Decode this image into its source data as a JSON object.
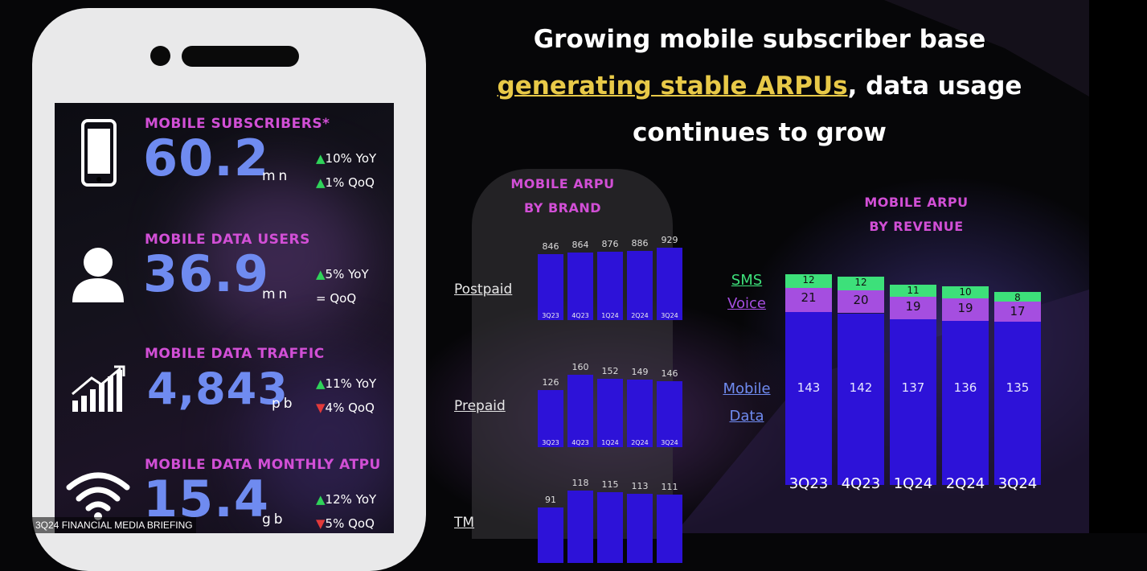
{
  "caption": "3Q24 FINANCIAL MEDIA BRIEFING",
  "headline": {
    "line1": "Growing mobile subscriber base",
    "line2_highlight": "generating stable ARPUs",
    "line2_rest": ", data usage",
    "line3": "continues to grow"
  },
  "kpis": [
    {
      "label": "MOBILE SUBSCRIBERS*",
      "value": "60.2",
      "unit": "mn",
      "icon": "phone-icon",
      "changes": [
        {
          "dir": "up",
          "text": "10% YoY"
        },
        {
          "dir": "up",
          "text": "1% QoQ"
        }
      ]
    },
    {
      "label": "MOBILE DATA USERS",
      "value": "36.9",
      "unit": "mn",
      "icon": "user-icon",
      "changes": [
        {
          "dir": "up",
          "text": "5% YoY"
        },
        {
          "dir": "eq",
          "text": "= QoQ"
        }
      ]
    },
    {
      "label": "MOBILE DATA TRAFFIC",
      "value": "4,843",
      "unit": "pb",
      "icon": "growth-chart-icon",
      "changes": [
        {
          "dir": "up",
          "text": "11% YoY"
        },
        {
          "dir": "down",
          "text": "4% QoQ"
        }
      ]
    },
    {
      "label": "MOBILE DATA MONTHLY ATPU",
      "value": "15.4",
      "unit": "gb",
      "icon": "wifi-icon",
      "changes": [
        {
          "dir": "up",
          "text": "12% YoY"
        },
        {
          "dir": "down",
          "text": "5% QoQ"
        }
      ]
    }
  ],
  "chart_data": [
    {
      "type": "bar",
      "title": "MOBILE ARPU BY BRAND",
      "categories": [
        "3Q23",
        "4Q23",
        "1Q24",
        "2Q24",
        "3Q24"
      ],
      "series": [
        {
          "name": "Postpaid",
          "values": [
            846,
            864,
            876,
            886,
            929
          ]
        },
        {
          "name": "Prepaid",
          "values": [
            126,
            160,
            152,
            149,
            146
          ]
        },
        {
          "name": "TM",
          "values": [
            91,
            118,
            115,
            113,
            111
          ]
        }
      ]
    },
    {
      "type": "bar",
      "stacked": true,
      "title": "MOBILE ARPU BY REVENUE",
      "categories": [
        "3Q23",
        "4Q23",
        "1Q24",
        "2Q24",
        "3Q24"
      ],
      "series": [
        {
          "name": "Mobile Data",
          "values": [
            143,
            142,
            137,
            136,
            135
          ],
          "color": "#2d12d8"
        },
        {
          "name": "Voice",
          "values": [
            21,
            20,
            19,
            19,
            17
          ],
          "color": "#a54ee0"
        },
        {
          "name": "SMS",
          "values": [
            12,
            12,
            11,
            10,
            8
          ],
          "color": "#3de07a"
        }
      ]
    }
  ],
  "colors": {
    "accent_magenta": "#d24fd6",
    "value_blue": "#6f8bf0",
    "highlight_yellow": "#e8c948"
  }
}
